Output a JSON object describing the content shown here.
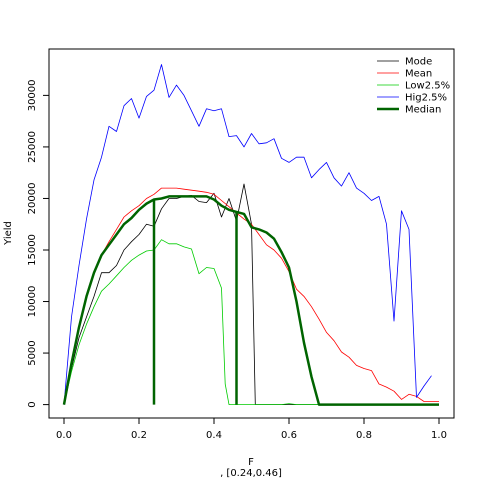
{
  "chart_data": {
    "type": "line",
    "xlabel": "F",
    "subtitle": ", [0.24,0.46]",
    "ylabel": "Yield",
    "xlim": [
      -0.04,
      1.04
    ],
    "ylim": [
      -1300,
      34500
    ],
    "x_ticks": [
      "0.0",
      "0.2",
      "0.4",
      "0.6",
      "0.8",
      "1.0"
    ],
    "y_ticks": [
      "0",
      "5000",
      "10000",
      "15000",
      "20000",
      "25000",
      "30000"
    ],
    "grid": false,
    "legend_position": "top-right",
    "series": [
      {
        "name": "Mode",
        "color": "#000000",
        "width": 0.8,
        "points": [
          [
            0,
            0
          ],
          [
            0.02,
            3500
          ],
          [
            0.04,
            6500
          ],
          [
            0.06,
            8500
          ],
          [
            0.08,
            10500
          ],
          [
            0.1,
            12800
          ],
          [
            0.12,
            12800
          ],
          [
            0.14,
            13500
          ],
          [
            0.16,
            15000
          ],
          [
            0.18,
            15800
          ],
          [
            0.2,
            16500
          ],
          [
            0.22,
            17500
          ],
          [
            0.24,
            17300
          ],
          [
            0.26,
            19000
          ],
          [
            0.28,
            20000
          ],
          [
            0.3,
            20000
          ],
          [
            0.32,
            20200
          ],
          [
            0.34,
            20300
          ],
          [
            0.36,
            19700
          ],
          [
            0.38,
            19600
          ],
          [
            0.4,
            20500
          ],
          [
            0.42,
            18200
          ],
          [
            0.44,
            20000
          ],
          [
            0.46,
            17800
          ],
          [
            0.48,
            21400
          ],
          [
            0.5,
            17500
          ],
          [
            0.51,
            0
          ],
          [
            0.52,
            0
          ],
          [
            0.6,
            0
          ],
          [
            0.7,
            0
          ],
          [
            0.8,
            0
          ],
          [
            0.9,
            0
          ],
          [
            1.0,
            0
          ]
        ]
      },
      {
        "name": "Mean",
        "color": "#ff0000",
        "width": 0.8,
        "points": [
          [
            0,
            0
          ],
          [
            0.02,
            4000
          ],
          [
            0.04,
            7500
          ],
          [
            0.06,
            10500
          ],
          [
            0.08,
            12800
          ],
          [
            0.1,
            14500
          ],
          [
            0.12,
            15800
          ],
          [
            0.14,
            17000
          ],
          [
            0.16,
            18200
          ],
          [
            0.18,
            18800
          ],
          [
            0.2,
            19300
          ],
          [
            0.22,
            20000
          ],
          [
            0.24,
            20400
          ],
          [
            0.26,
            21000
          ],
          [
            0.28,
            21000
          ],
          [
            0.3,
            21000
          ],
          [
            0.32,
            20900
          ],
          [
            0.34,
            20800
          ],
          [
            0.36,
            20700
          ],
          [
            0.38,
            20600
          ],
          [
            0.4,
            20400
          ],
          [
            0.42,
            19800
          ],
          [
            0.44,
            19200
          ],
          [
            0.46,
            18600
          ],
          [
            0.48,
            18000
          ],
          [
            0.5,
            17500
          ],
          [
            0.52,
            16500
          ],
          [
            0.54,
            15500
          ],
          [
            0.56,
            15000
          ],
          [
            0.58,
            14200
          ],
          [
            0.6,
            12900
          ],
          [
            0.62,
            11200
          ],
          [
            0.64,
            10500
          ],
          [
            0.66,
            9500
          ],
          [
            0.68,
            8300
          ],
          [
            0.7,
            7000
          ],
          [
            0.72,
            6200
          ],
          [
            0.74,
            5100
          ],
          [
            0.76,
            4600
          ],
          [
            0.78,
            3800
          ],
          [
            0.8,
            3500
          ],
          [
            0.82,
            3300
          ],
          [
            0.84,
            2000
          ],
          [
            0.86,
            1700
          ],
          [
            0.88,
            1300
          ],
          [
            0.9,
            500
          ],
          [
            0.92,
            1000
          ],
          [
            0.94,
            800
          ],
          [
            0.96,
            300
          ],
          [
            0.98,
            300
          ],
          [
            1.0,
            300
          ]
        ]
      },
      {
        "name": "Low2.5%",
        "color": "#00cc00",
        "width": 0.8,
        "points": [
          [
            0,
            0
          ],
          [
            0.02,
            3200
          ],
          [
            0.04,
            5800
          ],
          [
            0.06,
            7800
          ],
          [
            0.08,
            9500
          ],
          [
            0.1,
            11000
          ],
          [
            0.12,
            11700
          ],
          [
            0.14,
            12500
          ],
          [
            0.16,
            13300
          ],
          [
            0.18,
            14000
          ],
          [
            0.2,
            14500
          ],
          [
            0.22,
            14900
          ],
          [
            0.24,
            15000
          ],
          [
            0.26,
            16000
          ],
          [
            0.28,
            15600
          ],
          [
            0.3,
            15600
          ],
          [
            0.32,
            15300
          ],
          [
            0.34,
            15100
          ],
          [
            0.36,
            12700
          ],
          [
            0.38,
            13300
          ],
          [
            0.4,
            13200
          ],
          [
            0.42,
            11300
          ],
          [
            0.43,
            2000
          ],
          [
            0.44,
            0
          ],
          [
            0.5,
            0
          ],
          [
            0.58,
            0
          ],
          [
            0.6,
            100
          ],
          [
            0.62,
            0
          ],
          [
            0.7,
            0
          ],
          [
            0.8,
            0
          ],
          [
            0.9,
            0
          ],
          [
            1.0,
            0
          ]
        ]
      },
      {
        "name": "Hig2.5%",
        "color": "#0000ff",
        "width": 0.8,
        "points": [
          [
            0,
            0
          ],
          [
            0.02,
            8500
          ],
          [
            0.04,
            13500
          ],
          [
            0.06,
            18000
          ],
          [
            0.08,
            21800
          ],
          [
            0.1,
            24000
          ],
          [
            0.12,
            27000
          ],
          [
            0.14,
            26500
          ],
          [
            0.16,
            29000
          ],
          [
            0.18,
            29700
          ],
          [
            0.2,
            27800
          ],
          [
            0.22,
            29900
          ],
          [
            0.24,
            30500
          ],
          [
            0.26,
            33000
          ],
          [
            0.28,
            29800
          ],
          [
            0.3,
            31000
          ],
          [
            0.32,
            30000
          ],
          [
            0.34,
            28500
          ],
          [
            0.36,
            27000
          ],
          [
            0.38,
            28700
          ],
          [
            0.4,
            28500
          ],
          [
            0.42,
            28700
          ],
          [
            0.44,
            26000
          ],
          [
            0.46,
            26100
          ],
          [
            0.48,
            25000
          ],
          [
            0.5,
            26300
          ],
          [
            0.52,
            25300
          ],
          [
            0.54,
            25400
          ],
          [
            0.56,
            25800
          ],
          [
            0.58,
            23900
          ],
          [
            0.6,
            23500
          ],
          [
            0.62,
            24000
          ],
          [
            0.64,
            24000
          ],
          [
            0.66,
            22000
          ],
          [
            0.68,
            22800
          ],
          [
            0.7,
            23500
          ],
          [
            0.72,
            22000
          ],
          [
            0.74,
            21200
          ],
          [
            0.76,
            22500
          ],
          [
            0.78,
            21000
          ],
          [
            0.8,
            20500
          ],
          [
            0.82,
            19800
          ],
          [
            0.84,
            20200
          ],
          [
            0.86,
            17500
          ],
          [
            0.88,
            8100
          ],
          [
            0.9,
            18800
          ],
          [
            0.92,
            17000
          ],
          [
            0.94,
            700
          ],
          [
            0.96,
            1800
          ],
          [
            0.98,
            2800
          ]
        ]
      },
      {
        "name": "Median",
        "color": "#006400",
        "width": 2.5,
        "points": [
          [
            0,
            0
          ],
          [
            0.02,
            4000
          ],
          [
            0.04,
            7500
          ],
          [
            0.06,
            10500
          ],
          [
            0.08,
            12800
          ],
          [
            0.1,
            14500
          ],
          [
            0.12,
            15500
          ],
          [
            0.14,
            16500
          ],
          [
            0.16,
            17500
          ],
          [
            0.18,
            18100
          ],
          [
            0.2,
            18900
          ],
          [
            0.22,
            19500
          ],
          [
            0.24,
            19900
          ],
          [
            0.26,
            20000
          ],
          [
            0.28,
            20200
          ],
          [
            0.3,
            20200
          ],
          [
            0.32,
            20200
          ],
          [
            0.34,
            20200
          ],
          [
            0.36,
            20200
          ],
          [
            0.38,
            20200
          ],
          [
            0.4,
            19900
          ],
          [
            0.42,
            19300
          ],
          [
            0.44,
            18900
          ],
          [
            0.46,
            18700
          ],
          [
            0.48,
            18500
          ],
          [
            0.5,
            17200
          ],
          [
            0.52,
            17000
          ],
          [
            0.54,
            16700
          ],
          [
            0.56,
            16100
          ],
          [
            0.58,
            14800
          ],
          [
            0.6,
            13300
          ],
          [
            0.62,
            10000
          ],
          [
            0.64,
            6000
          ],
          [
            0.66,
            2700
          ],
          [
            0.68,
            0
          ],
          [
            0.7,
            0
          ],
          [
            0.8,
            0
          ],
          [
            0.9,
            0
          ],
          [
            1.0,
            0
          ]
        ]
      }
    ],
    "interval_bounds": [
      0.24,
      0.46
    ],
    "interval_color": "#006400"
  }
}
